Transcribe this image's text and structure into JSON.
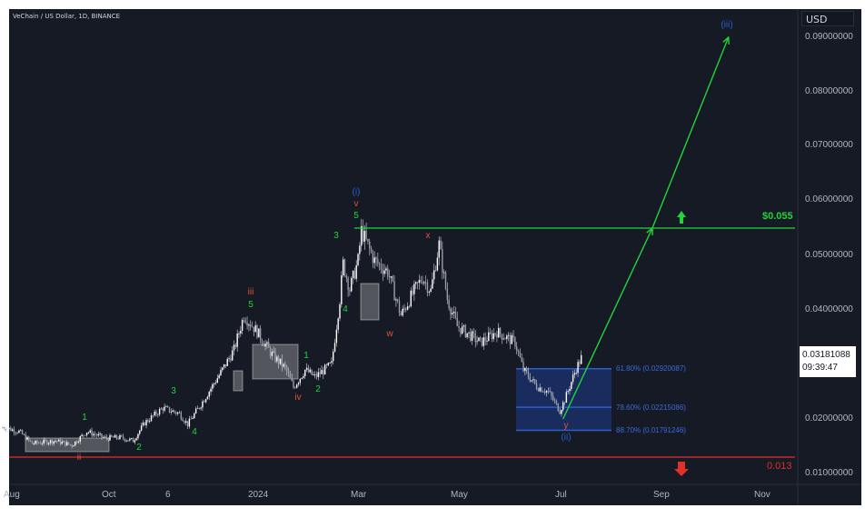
{
  "header": {
    "title": "VeChain / US Dollar, 1D, BINANCE",
    "currency": "USD"
  },
  "last_price": {
    "value": "0.03181088",
    "countdown": "09:39:47"
  },
  "colors": {
    "background": "#161a25",
    "candle": "#d1d4dc",
    "target_line": "#22d43a",
    "stop_line": "#e0302a",
    "fib": "#2b5fd0"
  },
  "chart_data": {
    "type": "line",
    "style": "candlestick",
    "title": "VeChain / US Dollar, 1D, BINANCE",
    "ylim": [
      0.0058,
      0.0965
    ],
    "y_ticks": [
      "0.09000000",
      "0.08000000",
      "0.07000000",
      "0.06000000",
      "0.05000000",
      "0.04000000",
      "0.02000000",
      "0.01000000"
    ],
    "x_ticks": [
      "Aug",
      "Oct",
      "6",
      "2024",
      "Mar",
      "May",
      "Jul",
      "Sep",
      "Nov"
    ],
    "grid": false,
    "series": [
      {
        "values": [
          [
            "2023-07-31",
            0.0185
          ],
          [
            "2023-08-10",
            0.0177
          ],
          [
            "2023-08-18",
            0.0155
          ],
          [
            "2023-09-01",
            0.016
          ],
          [
            "2023-09-11",
            0.0152
          ],
          [
            "2023-09-20",
            0.0177
          ],
          [
            "2023-10-01",
            0.0165
          ],
          [
            "2023-10-10",
            0.0166
          ],
          [
            "2023-10-18",
            0.016
          ],
          [
            "2023-10-25",
            0.0193
          ],
          [
            "2023-11-05",
            0.022
          ],
          [
            "2023-11-15",
            0.021
          ],
          [
            "2023-11-20",
            0.019
          ],
          [
            "2023-11-28",
            0.0227
          ],
          [
            "2023-12-10",
            0.0285
          ],
          [
            "2023-12-18",
            0.0327
          ],
          [
            "2023-12-24",
            0.039
          ],
          [
            "2024-01-01",
            0.036
          ],
          [
            "2024-01-10",
            0.0318
          ],
          [
            "2024-01-18",
            0.0293
          ],
          [
            "2024-01-23",
            0.0258
          ],
          [
            "2024-01-30",
            0.029
          ],
          [
            "2024-02-05",
            0.0277
          ],
          [
            "2024-02-15",
            0.03
          ],
          [
            "2024-02-20",
            0.042
          ],
          [
            "2024-02-22",
            0.0485
          ],
          [
            "2024-02-26",
            0.0438
          ],
          [
            "2024-03-02",
            0.049
          ],
          [
            "2024-03-04",
            0.0545
          ],
          [
            "2024-03-12",
            0.049
          ],
          [
            "2024-03-20",
            0.047
          ],
          [
            "2024-03-28",
            0.039
          ],
          [
            "2024-04-05",
            0.0435
          ],
          [
            "2024-04-10",
            0.046
          ],
          [
            "2024-04-15",
            0.0435
          ],
          [
            "2024-04-20",
            0.052
          ],
          [
            "2024-04-25",
            0.042
          ],
          [
            "2024-05-01",
            0.037
          ],
          [
            "2024-05-15",
            0.034
          ],
          [
            "2024-05-25",
            0.036
          ],
          [
            "2024-06-05",
            0.034
          ],
          [
            "2024-06-10",
            0.029
          ],
          [
            "2024-06-18",
            0.026
          ],
          [
            "2024-06-25",
            0.025
          ],
          [
            "2024-07-02",
            0.0215
          ],
          [
            "2024-07-05",
            0.0235
          ],
          [
            "2024-07-12",
            0.0293
          ],
          [
            "2024-07-16",
            0.0318
          ]
        ]
      }
    ],
    "annotations": {
      "wave_labels": {
        "ii": "ii",
        "one_a": "1",
        "two_a": "2",
        "three_a": "3",
        "four_a": "4",
        "iii": "iii",
        "five_a": "5",
        "iv": "iv",
        "one_b": "1",
        "two_b": "2",
        "three_b": "3",
        "four_b": "4",
        "five_b": "5",
        "v": "v",
        "wave_i": "(i)",
        "w": "w",
        "x": "x",
        "y": "y",
        "wave_ii": "(ii)",
        "wave_iii": "(iii)"
      },
      "target": {
        "label": "$0.055",
        "value": 0.055,
        "direction": "up"
      },
      "stop": {
        "label": "0.013",
        "value": 0.013,
        "direction": "down"
      },
      "fib_levels": [
        {
          "label": "61.80% (0.02920087)",
          "value": 0.02920087
        },
        {
          "label": "78.60% (0.02215086)",
          "value": 0.02215086
        },
        {
          "label": "88.70% (0.01791246)",
          "value": 0.01791246
        }
      ],
      "projection": [
        [
          "2024-07-04",
          0.02
        ],
        [
          "2024-08-27",
          0.055
        ],
        [
          "2024-10-12",
          0.09
        ]
      ]
    }
  }
}
